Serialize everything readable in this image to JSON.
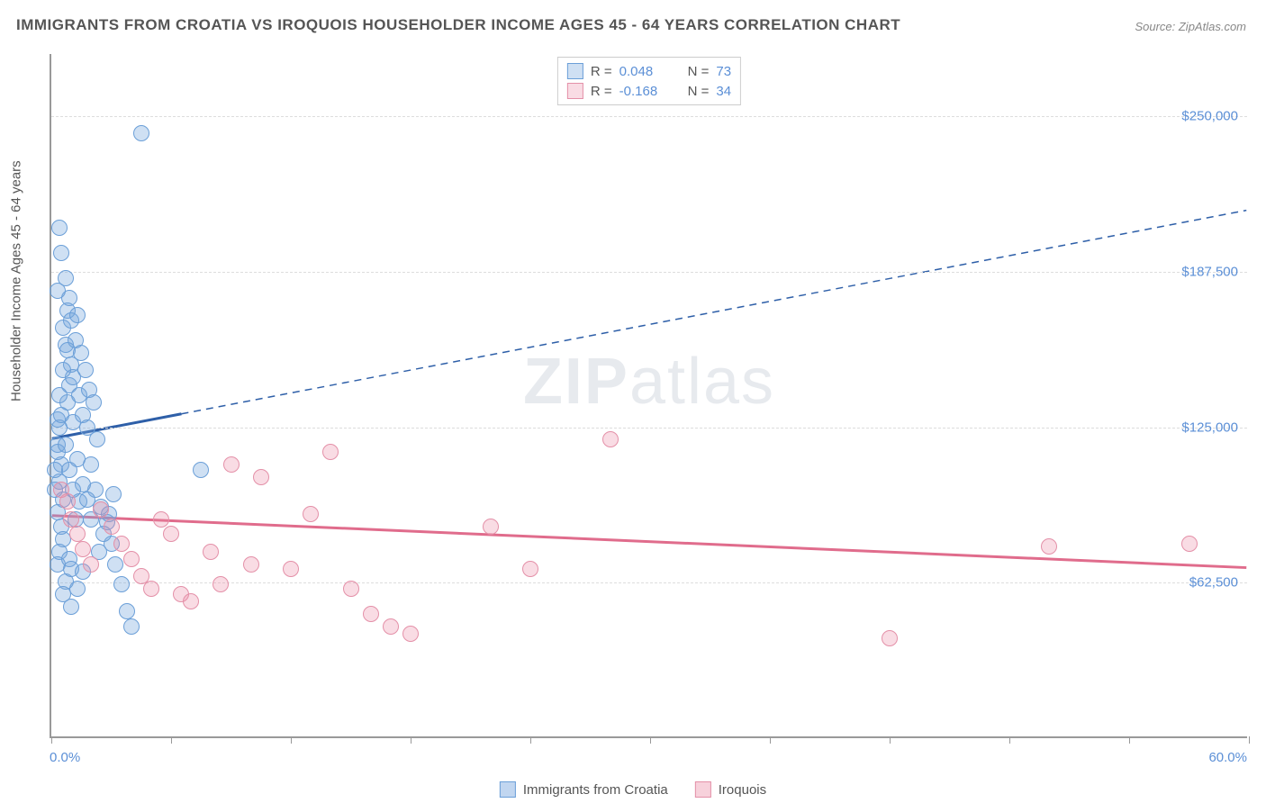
{
  "title": "IMMIGRANTS FROM CROATIA VS IROQUOIS HOUSEHOLDER INCOME AGES 45 - 64 YEARS CORRELATION CHART",
  "source": "Source: ZipAtlas.com",
  "watermark_bold": "ZIP",
  "watermark_rest": "atlas",
  "chart": {
    "type": "scatter",
    "background_color": "#ffffff",
    "grid_color": "#dddddd",
    "axis_color": "#999999",
    "xlim": [
      0.0,
      60.0
    ],
    "ylim": [
      0,
      275000
    ],
    "xaxis_min_label": "0.0%",
    "xaxis_max_label": "60.0%",
    "yaxis_title": "Householder Income Ages 45 - 64 years",
    "ytick_values": [
      62500,
      125000,
      187500,
      250000
    ],
    "ytick_labels": [
      "$62,500",
      "$125,000",
      "$187,500",
      "$250,000"
    ],
    "xtick_values": [
      0,
      6,
      12,
      18,
      24,
      30,
      36,
      42,
      48,
      54,
      60
    ],
    "marker_radius": 9,
    "marker_border_width": 1.5,
    "label_fontsize": 15,
    "title_fontsize": 17
  },
  "series": [
    {
      "name": "Immigrants from Croatia",
      "fill_color": "rgba(117,165,222,0.35)",
      "stroke_color": "#6b9fd8",
      "line_color": "#2e5fa8",
      "line_width": 3,
      "R_label": "R =",
      "R_value": "0.048",
      "N_label": "N =",
      "N_value": "73",
      "trend": {
        "x1": 0,
        "y1": 120000,
        "x2": 60,
        "y2": 212000,
        "solid_until_x": 6.5
      },
      "points": [
        [
          0.3,
          118000
        ],
        [
          0.4,
          125000
        ],
        [
          0.5,
          110000
        ],
        [
          0.4,
          103000
        ],
        [
          0.6,
          96000
        ],
        [
          0.3,
          91000
        ],
        [
          0.5,
          85000
        ],
        [
          0.6,
          80000
        ],
        [
          0.4,
          75000
        ],
        [
          0.3,
          70000
        ],
        [
          0.7,
          63000
        ],
        [
          0.9,
          72000
        ],
        [
          1.0,
          68000
        ],
        [
          1.2,
          88000
        ],
        [
          1.3,
          112000
        ],
        [
          1.1,
          127000
        ],
        [
          0.8,
          135000
        ],
        [
          0.9,
          142000
        ],
        [
          1.0,
          150000
        ],
        [
          0.7,
          158000
        ],
        [
          0.6,
          165000
        ],
        [
          0.8,
          172000
        ],
        [
          1.2,
          160000
        ],
        [
          1.1,
          145000
        ],
        [
          1.4,
          138000
        ],
        [
          1.6,
          130000
        ],
        [
          1.8,
          125000
        ],
        [
          2.0,
          110000
        ],
        [
          2.2,
          100000
        ],
        [
          2.5,
          93000
        ],
        [
          2.8,
          87000
        ],
        [
          3.0,
          78000
        ],
        [
          3.2,
          70000
        ],
        [
          3.5,
          62000
        ],
        [
          2.3,
          120000
        ],
        [
          0.5,
          195000
        ],
        [
          0.7,
          185000
        ],
        [
          0.9,
          177000
        ],
        [
          1.0,
          168000
        ],
        [
          0.4,
          205000
        ],
        [
          0.3,
          180000
        ],
        [
          0.6,
          148000
        ],
        [
          0.8,
          156000
        ],
        [
          1.3,
          170000
        ],
        [
          1.5,
          155000
        ],
        [
          1.7,
          148000
        ],
        [
          1.9,
          140000
        ],
        [
          2.1,
          135000
        ],
        [
          0.2,
          100000
        ],
        [
          0.2,
          108000
        ],
        [
          0.3,
          115000
        ],
        [
          0.3,
          128000
        ],
        [
          0.4,
          138000
        ],
        [
          0.5,
          130000
        ],
        [
          3.8,
          51000
        ],
        [
          4.0,
          45000
        ],
        [
          1.4,
          95000
        ],
        [
          1.6,
          102000
        ],
        [
          1.8,
          96000
        ],
        [
          2.0,
          88000
        ],
        [
          0.7,
          118000
        ],
        [
          0.9,
          108000
        ],
        [
          1.1,
          100000
        ],
        [
          2.4,
          75000
        ],
        [
          2.6,
          82000
        ],
        [
          2.9,
          90000
        ],
        [
          3.1,
          98000
        ],
        [
          7.5,
          108000
        ],
        [
          4.5,
          243000
        ],
        [
          0.6,
          58000
        ],
        [
          1.0,
          53000
        ],
        [
          1.3,
          60000
        ],
        [
          1.6,
          67000
        ]
      ]
    },
    {
      "name": "Iroquois",
      "fill_color": "rgba(235,140,165,0.3)",
      "stroke_color": "#e490a8",
      "line_color": "#e06c8c",
      "line_width": 3,
      "R_label": "R =",
      "R_value": "-0.168",
      "N_label": "N =",
      "N_value": "34",
      "trend": {
        "x1": 0,
        "y1": 89000,
        "x2": 60,
        "y2": 68000,
        "solid_until_x": 60
      },
      "points": [
        [
          0.5,
          100000
        ],
        [
          0.8,
          95000
        ],
        [
          1.0,
          88000
        ],
        [
          1.3,
          82000
        ],
        [
          1.6,
          76000
        ],
        [
          2.0,
          70000
        ],
        [
          2.5,
          92000
        ],
        [
          3.0,
          85000
        ],
        [
          3.5,
          78000
        ],
        [
          4.0,
          72000
        ],
        [
          4.5,
          65000
        ],
        [
          5.0,
          60000
        ],
        [
          5.5,
          88000
        ],
        [
          6.0,
          82000
        ],
        [
          6.5,
          58000
        ],
        [
          7.0,
          55000
        ],
        [
          8.0,
          75000
        ],
        [
          8.5,
          62000
        ],
        [
          9.0,
          110000
        ],
        [
          10.0,
          70000
        ],
        [
          10.5,
          105000
        ],
        [
          12.0,
          68000
        ],
        [
          13.0,
          90000
        ],
        [
          14.0,
          115000
        ],
        [
          15.0,
          60000
        ],
        [
          16.0,
          50000
        ],
        [
          17.0,
          45000
        ],
        [
          18.0,
          42000
        ],
        [
          22.0,
          85000
        ],
        [
          24.0,
          68000
        ],
        [
          28.0,
          120000
        ],
        [
          42.0,
          40000
        ],
        [
          50.0,
          77000
        ],
        [
          57.0,
          78000
        ]
      ]
    }
  ],
  "legend_bottom": [
    {
      "label": "Immigrants from Croatia",
      "fill": "rgba(117,165,222,0.45)",
      "stroke": "#6b9fd8"
    },
    {
      "label": "Iroquois",
      "fill": "rgba(235,140,165,0.4)",
      "stroke": "#e490a8"
    }
  ]
}
